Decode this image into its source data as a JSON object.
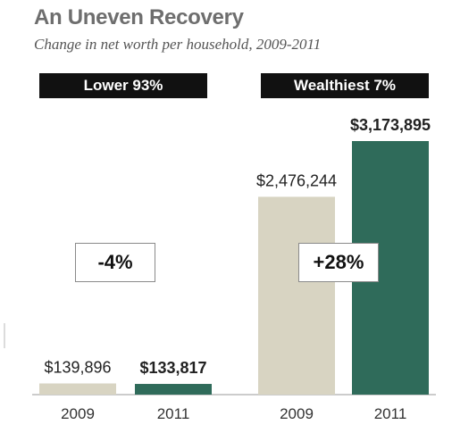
{
  "title": "An Uneven Recovery",
  "subtitle": "Change in net worth per household, 2009-2011",
  "groups": [
    {
      "label": "Lower 93%",
      "change": "-4%"
    },
    {
      "label": "Wealthiest 7%",
      "change": "+28%"
    }
  ],
  "colors": {
    "y2009": "#d8d4c2",
    "y2011": "#2f6b5a",
    "label_bg": "#111111",
    "axis": "#999999"
  },
  "chart_data": {
    "type": "bar",
    "title": "An Uneven Recovery",
    "subtitle": "Change in net worth per household, 2009-2011",
    "xlabel": "",
    "ylabel": "",
    "groups": [
      "Lower 93%",
      "Wealthiest 7%"
    ],
    "categories": [
      "2009",
      "2011",
      "2009",
      "2011"
    ],
    "values": [
      139896,
      133817,
      2476244,
      3173895
    ],
    "value_labels": [
      "$139,896",
      "$133,817",
      "$2,476,244",
      "$3,173,895"
    ],
    "bold_labels": [
      false,
      true,
      false,
      true
    ],
    "annotations": [
      "-4%",
      "+28%"
    ],
    "ylim": [
      0,
      3173895
    ],
    "grid": false,
    "legend": "none"
  }
}
